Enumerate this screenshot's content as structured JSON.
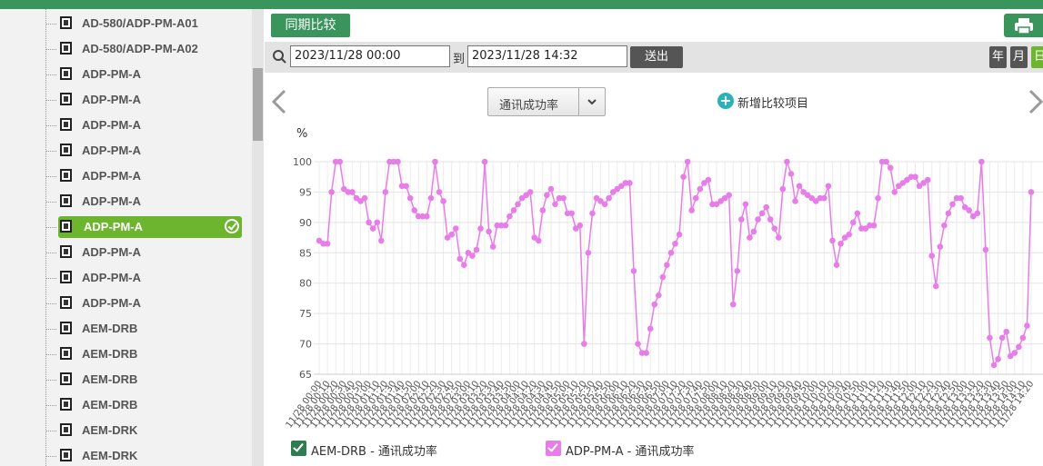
{
  "sidebar": {
    "items": [
      {
        "label": "AD-580/ADP-PM-A01",
        "selected": false
      },
      {
        "label": "AD-580/ADP-PM-A02",
        "selected": false
      },
      {
        "label": "ADP-PM-A",
        "selected": false
      },
      {
        "label": "ADP-PM-A",
        "selected": false
      },
      {
        "label": "ADP-PM-A",
        "selected": false
      },
      {
        "label": "ADP-PM-A",
        "selected": false
      },
      {
        "label": "ADP-PM-A",
        "selected": false
      },
      {
        "label": "ADP-PM-A",
        "selected": false
      },
      {
        "label": "ADP-PM-A",
        "selected": true
      },
      {
        "label": "ADP-PM-A",
        "selected": false
      },
      {
        "label": "ADP-PM-A",
        "selected": false
      },
      {
        "label": "ADP-PM-A",
        "selected": false
      },
      {
        "label": "AEM-DRB",
        "selected": false
      },
      {
        "label": "AEM-DRB",
        "selected": false
      },
      {
        "label": "AEM-DRB",
        "selected": false
      },
      {
        "label": "AEM-DRB",
        "selected": false
      },
      {
        "label": "AEM-DRK",
        "selected": false
      },
      {
        "label": "AEM-DRK",
        "selected": false
      }
    ]
  },
  "toolbar": {
    "compare_button": "同期比较"
  },
  "filter": {
    "start": "2023/11/28 00:00",
    "separator": "到",
    "end": "2023/11/28 14:32",
    "submit": "送出",
    "periods": [
      "年",
      "月",
      "日"
    ],
    "active_period": 2
  },
  "selector": {
    "metric": "通讯成功率",
    "add_compare": "新增比较项目"
  },
  "chart_data": {
    "type": "line",
    "y_unit": "%",
    "ylim": [
      65,
      100
    ],
    "yticks": [
      65,
      70,
      75,
      80,
      85,
      90,
      95,
      100
    ],
    "grid": true,
    "categories": [
      "11/28 00:00",
      null,
      "11/28 00:10",
      null,
      "11/28 00:20",
      null,
      "11/28 00:30",
      null,
      "11/28 00:40",
      null,
      "11/28 00:50",
      null,
      "11/28 01:00",
      null,
      "11/28 01:10",
      null,
      "11/28 01:20",
      null,
      "11/28 01:30",
      null,
      "11/28 01:40",
      null,
      "11/28 01:50",
      null,
      "11/28 02:00",
      null,
      "11/28 02:10",
      null,
      "11/28 02:20",
      null,
      "11/28 02:30",
      null,
      "11/28 02:40",
      null,
      "11/28 02:50",
      null,
      "11/28 03:00",
      null,
      "11/28 03:10",
      null,
      "11/28 03:20",
      null,
      "11/28 03:30",
      null,
      "11/28 03:40",
      null,
      "11/28 03:50",
      null,
      "11/28 04:00",
      null,
      "11/28 04:10",
      null,
      "11/28 04:20",
      null,
      "11/28 04:30",
      null,
      "11/28 04:40",
      null,
      "11/28 04:50",
      null,
      "11/28 05:00",
      null,
      "11/28 05:10",
      null,
      "11/28 05:20",
      null,
      "11/28 05:30",
      null,
      "11/28 05:40",
      null,
      "11/28 05:50",
      null,
      "11/28 06:00",
      null,
      "11/28 06:10",
      null,
      "11/28 06:20",
      null,
      "11/28 06:30",
      null,
      "11/28 06:40",
      null,
      "11/28 06:50",
      null,
      "11/28 07:00",
      null,
      "11/28 07:10",
      null,
      "11/28 07:20",
      null,
      "11/28 07:30",
      null,
      "11/28 07:40",
      null,
      "11/28 07:50",
      null,
      "11/28 08:00",
      null,
      "11/28 08:10",
      null,
      "11/28 08:20",
      null,
      "11/28 08:30",
      null,
      "11/28 08:40",
      null,
      "11/28 08:50",
      null,
      "11/28 09:00",
      null,
      "11/28 09:10",
      null,
      "11/28 09:20",
      null,
      "11/28 09:30",
      null,
      "11/28 09:40",
      null,
      "11/28 09:50",
      null,
      "11/28 10:00",
      null,
      "11/28 10:10",
      null,
      "11/28 10:20",
      null,
      "11/28 10:30",
      null,
      "11/28 10:40",
      null,
      "11/28 10:50",
      null,
      "11/28 11:00",
      null,
      "11/28 11:10",
      null,
      "11/28 11:20",
      null,
      "11/28 11:30",
      null,
      "11/28 11:40",
      null,
      "11/28 11:50",
      null,
      "11/28 12:00",
      null,
      "11/28 12:10",
      null,
      "11/28 12:20",
      null,
      "11/28 12:30",
      null,
      "11/28 12:40",
      null,
      "11/28 12:50",
      null,
      "11/28 13:00",
      null,
      "11/28 13:10",
      null,
      "11/28 13:20",
      null,
      "11/28 13:30",
      null,
      "11/28 13:40",
      null,
      "11/28 13:50",
      null,
      "11/28 14:00",
      null,
      "11/28 14:10",
      null,
      "11/28 14:20"
    ],
    "series": [
      {
        "name": "AEM-DRB - 通讯成功率",
        "color": "#2e7d4f",
        "values": [
          null,
          null,
          null,
          null,
          null,
          null,
          null,
          null,
          null,
          null,
          null,
          null,
          null,
          null,
          null,
          null,
          null,
          null,
          null,
          null,
          null,
          null,
          null,
          null,
          null,
          null,
          null,
          null,
          null,
          null,
          null,
          null,
          null,
          null,
          null,
          null,
          null,
          null,
          null,
          null,
          null,
          null,
          null,
          null,
          null,
          null,
          null,
          null,
          null,
          null,
          null,
          null,
          null,
          null,
          null,
          null,
          null,
          null,
          null,
          null,
          null,
          null,
          null,
          null,
          null,
          null,
          null,
          null,
          null,
          null,
          null,
          null,
          null,
          null,
          null,
          null,
          null,
          null,
          null,
          null,
          null,
          null,
          null,
          null,
          null,
          null,
          null,
          null,
          null,
          null,
          null,
          null,
          null,
          null,
          null,
          null,
          null,
          null,
          null,
          null,
          null,
          null,
          null,
          null,
          null,
          null,
          null,
          null,
          null,
          null,
          null,
          null,
          null,
          null,
          null,
          null,
          null,
          null,
          null,
          null,
          null,
          null,
          null,
          null,
          null,
          null,
          null,
          null,
          null,
          null,
          null,
          null,
          null,
          null,
          null,
          null,
          null,
          null,
          null,
          null,
          null,
          null,
          null,
          null,
          null,
          null,
          null,
          null,
          null,
          null,
          null,
          null,
          null,
          null,
          null,
          null,
          null,
          null,
          null,
          null,
          null,
          null,
          null,
          null,
          null,
          null,
          null,
          null,
          null,
          null,
          null,
          null,
          null
        ]
      },
      {
        "name": "ADP-PM-A - 通讯成功率",
        "color": "#e77de8",
        "values": [
          87,
          86.5,
          86.5,
          95,
          100,
          100,
          95.5,
          95,
          95,
          94,
          93.5,
          94,
          90,
          89,
          90,
          87,
          95,
          100,
          100,
          100,
          96,
          96,
          94,
          92,
          91,
          91,
          91,
          94,
          100,
          95,
          93.5,
          87.5,
          88,
          89,
          84,
          83,
          85,
          84.5,
          85.5,
          89,
          100,
          88.5,
          86,
          89.5,
          89.5,
          89.5,
          91,
          92,
          93,
          94,
          94.5,
          95,
          87.5,
          87,
          92,
          94.5,
          95.5,
          93,
          94,
          94,
          91.5,
          91.5,
          89,
          89.5,
          70,
          85,
          91.5,
          94,
          93.5,
          93,
          94,
          95,
          95.5,
          96,
          96.5,
          96.5,
          82,
          70,
          68.5,
          68.5,
          72.5,
          76.5,
          78,
          81,
          83,
          85,
          86.5,
          88,
          97.5,
          100,
          92,
          94,
          95.5,
          96.5,
          97,
          93,
          93,
          93.5,
          94,
          94.5,
          76.5,
          82,
          90.5,
          93,
          87.5,
          88.5,
          90.5,
          91.5,
          92.5,
          90.5,
          89,
          87.5,
          95.5,
          100,
          98,
          93.5,
          96,
          95,
          94.5,
          94,
          93.5,
          94,
          94,
          96,
          87,
          83,
          86.5,
          87.5,
          88,
          90,
          91.5,
          89,
          89,
          89.5,
          89.5,
          94,
          100,
          100,
          99,
          95,
          96,
          96.5,
          97,
          97.5,
          97.5,
          96,
          96.5,
          97,
          84.5,
          79.5,
          86,
          89.5,
          91.5,
          93,
          94,
          94,
          92.5,
          92,
          91,
          91.5,
          100,
          85.5,
          71,
          66.5,
          67.5,
          71,
          72,
          68,
          68.5,
          69.5,
          71,
          73,
          95
        ]
      }
    ]
  }
}
